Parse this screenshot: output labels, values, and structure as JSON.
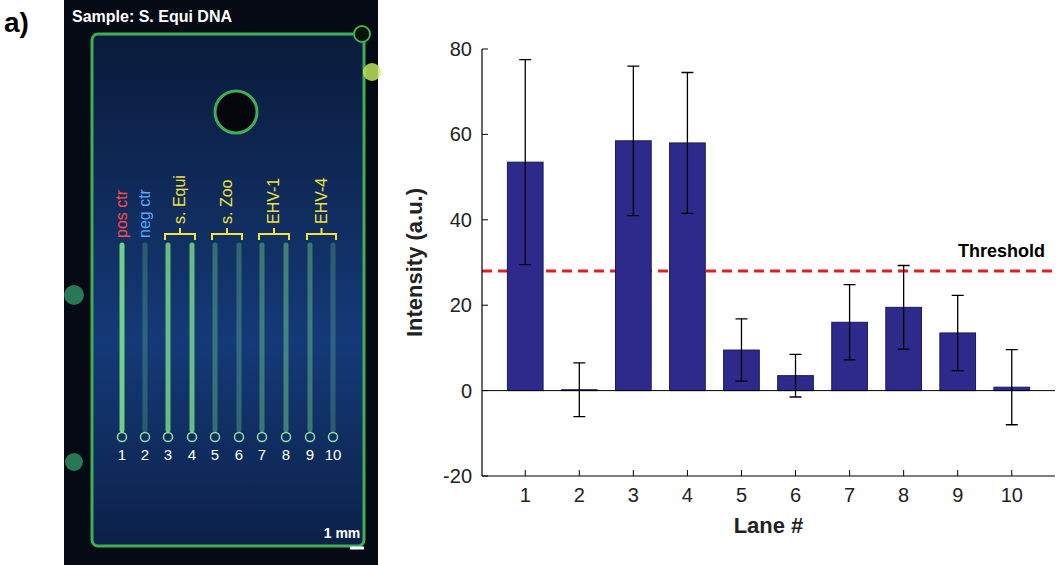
{
  "figure": {
    "label": "a)",
    "photo": {
      "title": "Sample: S. Equi DNA",
      "controls": [
        "pos ctr",
        "neg ctr"
      ],
      "groups": [
        "s. Equi",
        "s. Zoo",
        "EHV-1",
        "EHV-4"
      ],
      "lane_labels": [
        "1",
        "2",
        "3",
        "4",
        "5",
        "6",
        "7",
        "8",
        "9",
        "10"
      ],
      "scale_bar": "1 mm"
    }
  },
  "chart_data": {
    "type": "bar",
    "categories": [
      "1",
      "2",
      "3",
      "4",
      "5",
      "6",
      "7",
      "8",
      "9",
      "10"
    ],
    "values": [
      53.5,
      0.2,
      58.5,
      58,
      9.5,
      3.5,
      16,
      19.5,
      13.5,
      0.8
    ],
    "errors": [
      24,
      6.3,
      17.5,
      16.5,
      7.3,
      5,
      8.8,
      9.8,
      8.8,
      8.8
    ],
    "color": "#2e2a8c",
    "x_label": "Lane #",
    "y_label": "Intensity (a.u.)",
    "ylim": [
      -20,
      80
    ],
    "yticks": [
      -20,
      0,
      20,
      40,
      60,
      80
    ],
    "threshold": {
      "value": 28,
      "label": "Threshold",
      "color": "#e02020",
      "line_style": "dashed"
    },
    "grid": false
  }
}
